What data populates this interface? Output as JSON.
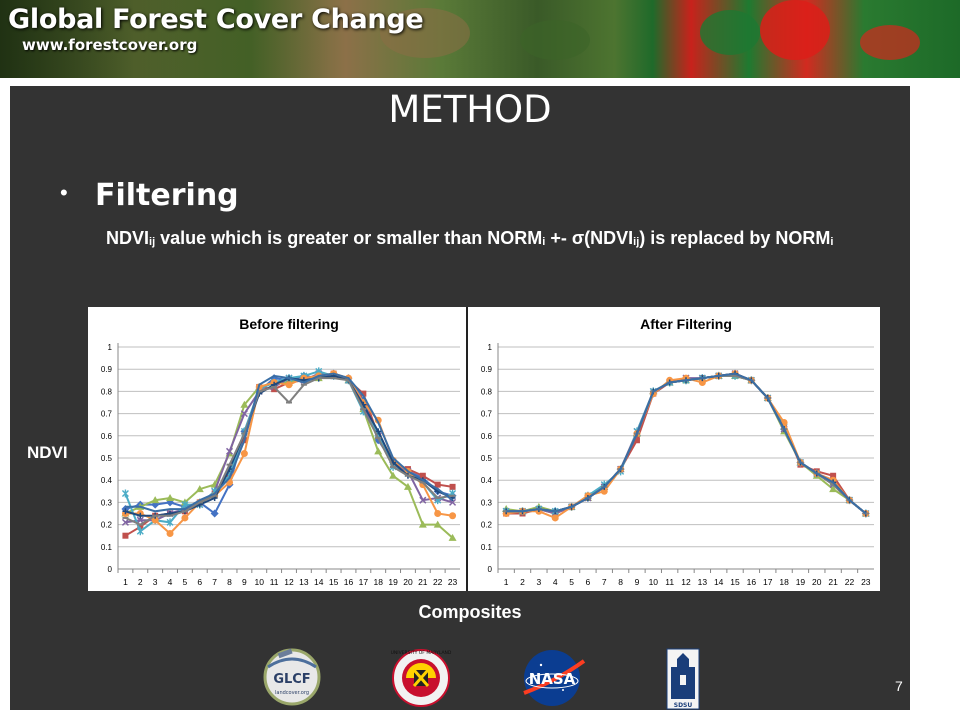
{
  "banner": {
    "title": "Global Forest Cover Change",
    "url": "www.forestcover.org"
  },
  "slide": {
    "title": "METHOD",
    "bullet": "Filtering",
    "description": {
      "t1": "NDVI",
      "s1": "ij",
      "t2": " value which is greater or smaller than NORM",
      "s2": "i",
      "t3": " +- σ(NDVI",
      "s3": "ij",
      "t4": ") is replaced by NORM",
      "s4": "i"
    },
    "y_axis_label": "NDVI",
    "x_axis_label": "Composites",
    "page_number": "7"
  },
  "logos": [
    {
      "name": "glcf-logo",
      "text": "GLCF",
      "subtext": "landcover.org"
    },
    {
      "name": "umd-seal-logo",
      "text": "UNIVERSITY OF MARYLAND"
    },
    {
      "name": "nasa-logo",
      "text": "NASA"
    },
    {
      "name": "sdsu-logo",
      "text": "SDSU"
    }
  ],
  "colors": {
    "slide_bg": "#333333",
    "text": "#ffffff",
    "series": [
      "#4472c4",
      "#c0504d",
      "#9bbb59",
      "#8064a2",
      "#4bacc6",
      "#f79646",
      "#1f497d",
      "#7f7f7f",
      "#3a6ea5"
    ]
  },
  "chart_data": [
    {
      "type": "line",
      "title": "Before filtering",
      "x": [
        1,
        2,
        3,
        4,
        5,
        6,
        7,
        8,
        9,
        10,
        11,
        12,
        13,
        14,
        15,
        16,
        17,
        18,
        19,
        20,
        21,
        22,
        23
      ],
      "ylim": [
        0,
        1
      ],
      "yticks": [
        0,
        0.1,
        0.2,
        0.3,
        0.4,
        0.5,
        0.6,
        0.7,
        0.8,
        0.9,
        1
      ],
      "grid": true,
      "series": [
        {
          "color": "#4472c4",
          "marker": "diamond",
          "values": [
            0.27,
            0.29,
            0.29,
            0.3,
            0.28,
            0.3,
            0.25,
            0.38,
            0.62,
            0.8,
            0.86,
            0.85,
            0.87,
            0.86,
            0.88,
            0.86,
            0.76,
            0.58,
            0.48,
            0.44,
            0.41,
            0.35,
            0.33
          ]
        },
        {
          "color": "#c0504d",
          "marker": "square",
          "values": [
            0.15,
            0.19,
            0.24,
            0.25,
            0.26,
            0.3,
            0.34,
            0.42,
            0.58,
            0.82,
            0.81,
            0.84,
            0.85,
            0.87,
            0.88,
            0.85,
            0.79,
            0.6,
            0.48,
            0.45,
            0.42,
            0.38,
            0.37
          ]
        },
        {
          "color": "#9bbb59",
          "marker": "triangle",
          "values": [
            0.25,
            0.28,
            0.31,
            0.32,
            0.3,
            0.36,
            0.38,
            0.52,
            0.74,
            0.82,
            0.84,
            0.84,
            0.86,
            0.86,
            0.87,
            0.85,
            0.72,
            0.53,
            0.42,
            0.37,
            0.2,
            0.2,
            0.14
          ]
        },
        {
          "color": "#8064a2",
          "marker": "x",
          "values": [
            0.21,
            0.22,
            0.22,
            0.25,
            0.27,
            0.29,
            0.35,
            0.53,
            0.7,
            0.8,
            0.82,
            0.86,
            0.85,
            0.88,
            0.87,
            0.85,
            0.73,
            0.6,
            0.47,
            0.44,
            0.31,
            0.32,
            0.3
          ]
        },
        {
          "color": "#4bacc6",
          "marker": "star",
          "values": [
            0.34,
            0.17,
            0.22,
            0.21,
            0.29,
            0.29,
            0.35,
            0.42,
            0.62,
            0.81,
            0.84,
            0.86,
            0.87,
            0.89,
            0.87,
            0.85,
            0.71,
            0.61,
            0.46,
            0.43,
            0.39,
            0.31,
            0.34
          ]
        },
        {
          "color": "#f79646",
          "marker": "circle",
          "values": [
            0.25,
            0.25,
            0.22,
            0.16,
            0.23,
            0.3,
            0.33,
            0.39,
            0.52,
            0.82,
            0.84,
            0.83,
            0.86,
            0.87,
            0.88,
            0.86,
            0.75,
            0.67,
            0.49,
            0.44,
            0.38,
            0.25,
            0.24
          ]
        },
        {
          "color": "#1f497d",
          "marker": "plus",
          "values": [
            0.26,
            0.24,
            0.24,
            0.25,
            0.26,
            0.29,
            0.32,
            0.45,
            0.61,
            0.79,
            0.83,
            0.86,
            0.85,
            0.86,
            0.87,
            0.85,
            0.74,
            0.62,
            0.48,
            0.42,
            0.4,
            0.35,
            0.32
          ]
        },
        {
          "color": "#7f7f7f",
          "marker": "dash",
          "values": [
            0.23,
            0.2,
            0.24,
            0.24,
            0.26,
            0.3,
            0.33,
            0.47,
            0.61,
            0.8,
            0.82,
            0.75,
            0.83,
            0.86,
            0.86,
            0.85,
            0.72,
            0.59,
            0.46,
            0.42,
            0.39,
            0.32,
            0.33
          ]
        },
        {
          "color": "#3a6ea5",
          "marker": "none",
          "values": [
            0.28,
            0.28,
            0.26,
            0.27,
            0.27,
            0.31,
            0.34,
            0.41,
            0.58,
            0.83,
            0.87,
            0.86,
            0.84,
            0.87,
            0.88,
            0.86,
            0.78,
            0.66,
            0.5,
            0.44,
            0.4,
            0.36,
            0.31
          ]
        }
      ]
    },
    {
      "type": "line",
      "title": "After Filtering",
      "x": [
        1,
        2,
        3,
        4,
        5,
        6,
        7,
        8,
        9,
        10,
        11,
        12,
        13,
        14,
        15,
        16,
        17,
        18,
        19,
        20,
        21,
        22,
        23
      ],
      "ylim": [
        0,
        1
      ],
      "yticks": [
        0,
        0.1,
        0.2,
        0.3,
        0.4,
        0.5,
        0.6,
        0.7,
        0.8,
        0.9,
        1
      ],
      "grid": true,
      "series": [
        {
          "color": "#4472c4",
          "marker": "diamond",
          "values": [
            0.26,
            0.26,
            0.27,
            0.26,
            0.28,
            0.32,
            0.37,
            0.45,
            0.6,
            0.79,
            0.84,
            0.85,
            0.86,
            0.87,
            0.88,
            0.85,
            0.77,
            0.63,
            0.48,
            0.43,
            0.4,
            0.31,
            0.25
          ]
        },
        {
          "color": "#c0504d",
          "marker": "square",
          "values": [
            0.25,
            0.25,
            0.27,
            0.25,
            0.28,
            0.32,
            0.37,
            0.45,
            0.58,
            0.79,
            0.84,
            0.85,
            0.86,
            0.87,
            0.87,
            0.85,
            0.77,
            0.64,
            0.47,
            0.44,
            0.42,
            0.31,
            0.25
          ]
        },
        {
          "color": "#9bbb59",
          "marker": "triangle",
          "values": [
            0.27,
            0.26,
            0.28,
            0.26,
            0.28,
            0.32,
            0.37,
            0.45,
            0.61,
            0.8,
            0.84,
            0.85,
            0.86,
            0.87,
            0.87,
            0.85,
            0.77,
            0.62,
            0.48,
            0.42,
            0.36,
            0.31,
            0.25
          ]
        },
        {
          "color": "#8064a2",
          "marker": "x",
          "values": [
            0.26,
            0.26,
            0.27,
            0.25,
            0.28,
            0.32,
            0.37,
            0.45,
            0.62,
            0.8,
            0.84,
            0.86,
            0.86,
            0.87,
            0.88,
            0.85,
            0.77,
            0.63,
            0.48,
            0.43,
            0.38,
            0.31,
            0.25
          ]
        },
        {
          "color": "#4bacc6",
          "marker": "star",
          "values": [
            0.26,
            0.26,
            0.27,
            0.26,
            0.28,
            0.33,
            0.38,
            0.44,
            0.62,
            0.8,
            0.84,
            0.85,
            0.86,
            0.87,
            0.87,
            0.85,
            0.77,
            0.64,
            0.48,
            0.43,
            0.39,
            0.31,
            0.25
          ]
        },
        {
          "color": "#f79646",
          "marker": "circle",
          "values": [
            0.25,
            0.26,
            0.26,
            0.23,
            0.28,
            0.33,
            0.35,
            0.45,
            0.61,
            0.79,
            0.85,
            0.86,
            0.84,
            0.87,
            0.88,
            0.85,
            0.77,
            0.66,
            0.48,
            0.43,
            0.4,
            0.31,
            0.25
          ]
        },
        {
          "color": "#1f497d",
          "marker": "plus",
          "values": [
            0.26,
            0.26,
            0.27,
            0.26,
            0.28,
            0.32,
            0.37,
            0.45,
            0.61,
            0.8,
            0.84,
            0.85,
            0.86,
            0.87,
            0.88,
            0.85,
            0.77,
            0.63,
            0.48,
            0.43,
            0.39,
            0.31,
            0.25
          ]
        },
        {
          "color": "#7f7f7f",
          "marker": "dash",
          "values": [
            0.26,
            0.26,
            0.27,
            0.26,
            0.28,
            0.32,
            0.37,
            0.45,
            0.61,
            0.8,
            0.84,
            0.85,
            0.86,
            0.87,
            0.87,
            0.85,
            0.77,
            0.63,
            0.48,
            0.43,
            0.38,
            0.31,
            0.25
          ]
        },
        {
          "color": "#3a6ea5",
          "marker": "none",
          "values": [
            0.26,
            0.26,
            0.27,
            0.26,
            0.28,
            0.32,
            0.37,
            0.45,
            0.61,
            0.8,
            0.84,
            0.85,
            0.86,
            0.87,
            0.88,
            0.85,
            0.77,
            0.63,
            0.48,
            0.43,
            0.39,
            0.31,
            0.25
          ]
        }
      ]
    }
  ]
}
